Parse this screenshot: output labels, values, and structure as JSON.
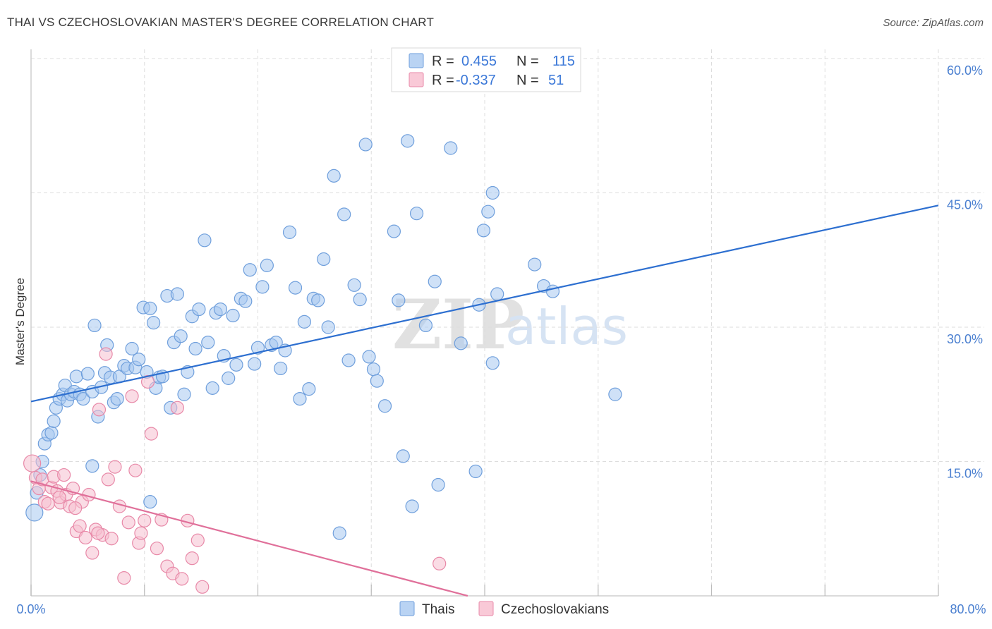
{
  "title": "THAI VS CZECHOSLOVAKIAN MASTER'S DEGREE CORRELATION CHART",
  "source": "Source: ZipAtlas.com",
  "watermark": {
    "zip": "ZIP",
    "atlas": "atlas"
  },
  "colors": {
    "blue_fill": "#a8c8f0",
    "blue_stroke": "#6f9fdc",
    "blue_line": "#2d6fd0",
    "pink_fill": "#f6bfd0",
    "pink_stroke": "#e889a8",
    "pink_line": "#e0709a",
    "grid": "#dddddd",
    "tick_text": "#4a7fd0"
  },
  "legend": {
    "row1": {
      "r_label": "R =",
      "r_value": "0.455",
      "n_label": "N =",
      "n_value": "115"
    },
    "row2": {
      "r_label": "R =",
      "r_value": "-0.337",
      "n_label": "N =",
      "n_value": "51"
    }
  },
  "bottom_legend": {
    "series1": "Thais",
    "series2": "Czechoslovakians"
  },
  "chart_data": {
    "type": "scatter",
    "title": "THAI VS CZECHOSLOVAKIAN MASTER'S DEGREE CORRELATION CHART",
    "xlabel": "",
    "ylabel": "Master's Degree",
    "xlim": [
      0,
      80
    ],
    "ylim": [
      0,
      60
    ],
    "x_tick_labels": [
      "0.0%",
      "80.0%"
    ],
    "y_ticks": [
      15,
      30,
      45,
      60
    ],
    "y_tick_labels": [
      "15.0%",
      "30.0%",
      "45.0%",
      "60.0%"
    ],
    "grid": true,
    "legend_placement": "top-center",
    "series": [
      {
        "name": "Thais",
        "r": 0.455,
        "n": 115,
        "trend": {
          "x": [
            0,
            80
          ],
          "y": [
            21.7,
            43.6
          ]
        },
        "points": [
          [
            0.3,
            9.3
          ],
          [
            0.5,
            11.5
          ],
          [
            0.8,
            13.5
          ],
          [
            1.0,
            15.0
          ],
          [
            1.2,
            17.0
          ],
          [
            1.5,
            18.0
          ],
          [
            1.8,
            18.2
          ],
          [
            2.0,
            19.5
          ],
          [
            2.2,
            21.0
          ],
          [
            2.5,
            22.0
          ],
          [
            2.8,
            22.5
          ],
          [
            3.0,
            23.5
          ],
          [
            3.2,
            21.8
          ],
          [
            3.5,
            22.5
          ],
          [
            3.8,
            22.8
          ],
          [
            4.0,
            24.5
          ],
          [
            4.3,
            22.5
          ],
          [
            4.6,
            22.0
          ],
          [
            5.0,
            24.8
          ],
          [
            5.4,
            22.8
          ],
          [
            5.6,
            30.2
          ],
          [
            5.9,
            20.0
          ],
          [
            6.2,
            23.3
          ],
          [
            6.5,
            24.9
          ],
          [
            6.7,
            28.0
          ],
          [
            7.0,
            24.4
          ],
          [
            7.3,
            21.6
          ],
          [
            7.6,
            22.0
          ],
          [
            7.8,
            24.5
          ],
          [
            8.2,
            25.7
          ],
          [
            8.5,
            25.4
          ],
          [
            8.9,
            27.6
          ],
          [
            9.2,
            25.5
          ],
          [
            9.5,
            26.4
          ],
          [
            9.9,
            32.2
          ],
          [
            10.2,
            25.0
          ],
          [
            10.5,
            32.1
          ],
          [
            10.8,
            30.5
          ],
          [
            11.0,
            23.2
          ],
          [
            11.3,
            24.4
          ],
          [
            11.6,
            24.5
          ],
          [
            12.0,
            33.5
          ],
          [
            12.3,
            21.0
          ],
          [
            12.6,
            28.3
          ],
          [
            12.9,
            33.7
          ],
          [
            13.2,
            29.0
          ],
          [
            13.5,
            22.5
          ],
          [
            13.8,
            25.0
          ],
          [
            14.2,
            31.2
          ],
          [
            14.5,
            27.6
          ],
          [
            14.8,
            32.0
          ],
          [
            15.3,
            39.7
          ],
          [
            15.6,
            28.3
          ],
          [
            16.0,
            23.2
          ],
          [
            16.3,
            31.6
          ],
          [
            16.7,
            32.0
          ],
          [
            17.0,
            26.8
          ],
          [
            17.4,
            24.3
          ],
          [
            17.8,
            31.3
          ],
          [
            18.1,
            25.8
          ],
          [
            18.5,
            33.2
          ],
          [
            18.9,
            32.9
          ],
          [
            19.3,
            36.4
          ],
          [
            19.7,
            25.9
          ],
          [
            20.0,
            27.7
          ],
          [
            20.4,
            34.5
          ],
          [
            20.8,
            36.9
          ],
          [
            21.2,
            28.0
          ],
          [
            21.6,
            28.3
          ],
          [
            22.0,
            25.4
          ],
          [
            22.4,
            27.4
          ],
          [
            22.8,
            40.6
          ],
          [
            23.3,
            34.4
          ],
          [
            23.7,
            22.0
          ],
          [
            24.1,
            30.6
          ],
          [
            24.5,
            23.1
          ],
          [
            24.9,
            33.2
          ],
          [
            25.3,
            33.0
          ],
          [
            25.8,
            37.6
          ],
          [
            26.2,
            30.0
          ],
          [
            26.7,
            46.9
          ],
          [
            27.2,
            7.0
          ],
          [
            27.6,
            42.6
          ],
          [
            28.0,
            26.3
          ],
          [
            28.5,
            34.7
          ],
          [
            29.0,
            33.1
          ],
          [
            29.5,
            50.4
          ],
          [
            29.8,
            26.7
          ],
          [
            30.2,
            25.3
          ],
          [
            30.5,
            24.0
          ],
          [
            31.2,
            21.2
          ],
          [
            32.0,
            40.7
          ],
          [
            32.4,
            33.0
          ],
          [
            32.8,
            15.6
          ],
          [
            33.2,
            50.8
          ],
          [
            33.6,
            10.0
          ],
          [
            34.0,
            42.7
          ],
          [
            34.8,
            30.2
          ],
          [
            35.6,
            35.1
          ],
          [
            35.9,
            12.4
          ],
          [
            37.0,
            50.0
          ],
          [
            37.9,
            28.2
          ],
          [
            39.5,
            32.5
          ],
          [
            40.7,
            26.0
          ],
          [
            39.2,
            13.9
          ],
          [
            39.9,
            40.8
          ],
          [
            40.3,
            42.9
          ],
          [
            40.7,
            45.0
          ],
          [
            41.1,
            33.7
          ],
          [
            44.4,
            37.0
          ],
          [
            45.2,
            34.6
          ],
          [
            46.0,
            34.0
          ],
          [
            51.5,
            22.5
          ],
          [
            10.5,
            10.5
          ],
          [
            5.4,
            14.5
          ]
        ]
      },
      {
        "name": "Czechoslovakians",
        "r": -0.337,
        "n": 51,
        "trend": {
          "x": [
            0,
            38.5
          ],
          "y": [
            12.8,
            0
          ]
        },
        "points": [
          [
            0.1,
            14.8
          ],
          [
            0.4,
            13.2
          ],
          [
            0.7,
            12.0
          ],
          [
            1.0,
            13.0
          ],
          [
            1.2,
            10.5
          ],
          [
            1.5,
            10.3
          ],
          [
            1.8,
            12.1
          ],
          [
            2.0,
            13.3
          ],
          [
            2.3,
            11.7
          ],
          [
            2.6,
            10.4
          ],
          [
            2.9,
            13.5
          ],
          [
            3.1,
            11.3
          ],
          [
            3.4,
            10.0
          ],
          [
            3.7,
            12.0
          ],
          [
            4.0,
            7.2
          ],
          [
            4.3,
            7.8
          ],
          [
            4.5,
            10.5
          ],
          [
            4.8,
            6.5
          ],
          [
            5.1,
            11.3
          ],
          [
            5.4,
            4.8
          ],
          [
            5.7,
            7.4
          ],
          [
            6.0,
            20.8
          ],
          [
            6.3,
            6.8
          ],
          [
            6.6,
            27.0
          ],
          [
            6.8,
            13.0
          ],
          [
            7.1,
            6.4
          ],
          [
            7.4,
            14.4
          ],
          [
            7.8,
            10.0
          ],
          [
            8.2,
            2.0
          ],
          [
            8.6,
            8.2
          ],
          [
            8.9,
            22.3
          ],
          [
            9.2,
            14.0
          ],
          [
            9.5,
            5.9
          ],
          [
            9.7,
            7.0
          ],
          [
            10.0,
            8.4
          ],
          [
            10.3,
            23.9
          ],
          [
            10.6,
            18.1
          ],
          [
            11.1,
            5.3
          ],
          [
            11.5,
            8.5
          ],
          [
            12.0,
            3.3
          ],
          [
            12.5,
            2.5
          ],
          [
            12.9,
            21.0
          ],
          [
            13.3,
            1.9
          ],
          [
            13.8,
            8.4
          ],
          [
            14.2,
            4.2
          ],
          [
            14.7,
            6.2
          ],
          [
            15.1,
            1.0
          ],
          [
            36.0,
            3.6
          ],
          [
            3.9,
            9.8
          ],
          [
            5.9,
            7.0
          ],
          [
            2.5,
            11.0
          ]
        ]
      }
    ]
  }
}
